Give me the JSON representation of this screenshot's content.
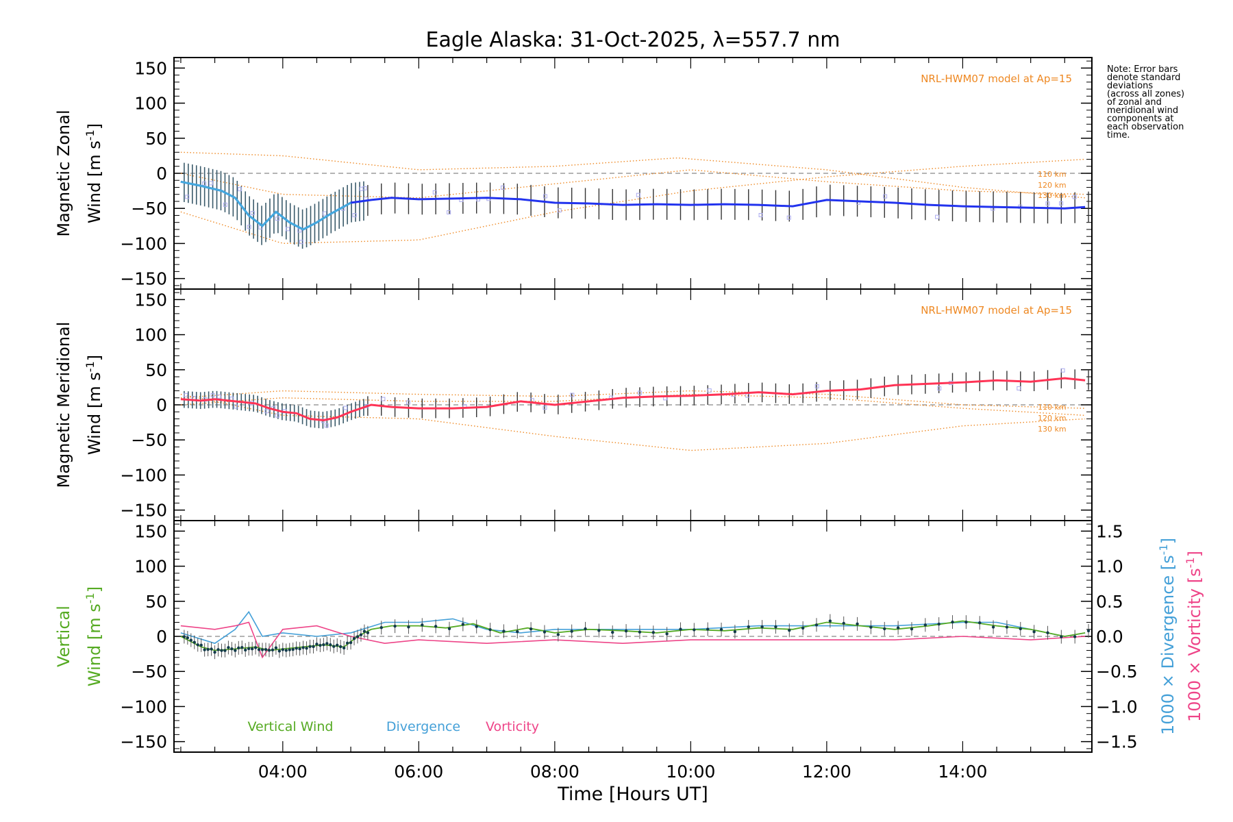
{
  "title": "Eagle Alaska: 31-Oct-2025, λ=557.7 nm",
  "note_lines": [
    "Note: Error bars",
    "denote standard",
    "deviations",
    "(across all zones)",
    "of zonal and",
    "meridional wind",
    "components at",
    "each observation",
    "time."
  ],
  "colors": {
    "zonal": "#2233ee",
    "zonal_light": "#44aadd",
    "meridional": "#ff3355",
    "model": "#ee8822",
    "vertical": "#55aa22",
    "divergence": "#44a0d8",
    "vorticity": "#ee4488",
    "scatter": "#aaaaee"
  },
  "chart_data": [
    {
      "type": "line",
      "panel": "zonal",
      "ylabel_line1": "Magnetic Zonal",
      "ylabel_line2": "Wind [m s",
      "ylabel_sup": "-1",
      "ylabel_end": "]",
      "ylim": [
        -165,
        165
      ],
      "yticks": [
        -150,
        -100,
        -50,
        0,
        50,
        100,
        150
      ],
      "model_label": "NRL-HWM07 model at Ap=15",
      "model_km_labels": [
        "110 km",
        "120 km",
        "130 km"
      ],
      "series": [
        {
          "name": "Zonal Wind",
          "x": [
            2.5,
            2.8,
            3.1,
            3.3,
            3.5,
            3.7,
            3.9,
            4.1,
            4.3,
            4.5,
            4.7,
            5.0,
            5.3,
            5.6,
            6.0,
            6.5,
            7.0,
            7.5,
            8.0,
            8.5,
            9.0,
            9.5,
            10.0,
            10.5,
            11.0,
            11.5,
            12.0,
            12.5,
            13.0,
            13.5,
            14.0,
            14.5,
            15.0,
            15.5,
            15.8
          ],
          "y": [
            -12,
            -18,
            -25,
            -35,
            -60,
            -75,
            -55,
            -70,
            -80,
            -70,
            -58,
            -42,
            -38,
            -35,
            -37,
            -36,
            -35,
            -37,
            -42,
            -43,
            -45,
            -44,
            -45,
            -44,
            -45,
            -47,
            -38,
            -40,
            -42,
            -45,
            -47,
            -48,
            -49,
            -50,
            -48
          ]
        },
        {
          "name": "110 km model",
          "x": [
            2.5,
            4.0,
            6.0,
            8.0,
            10.0,
            12.0,
            14.0,
            15.8
          ],
          "y": [
            -55,
            -100,
            -95,
            -55,
            -25,
            -5,
            10,
            20
          ]
        },
        {
          "name": "120 km model",
          "x": [
            2.5,
            4.0,
            6.0,
            8.0,
            10.0,
            12.0,
            14.0,
            15.8
          ],
          "y": [
            0,
            -30,
            -35,
            -15,
            5,
            -12,
            -25,
            -30
          ]
        },
        {
          "name": "130 km model",
          "x": [
            2.5,
            4.0,
            6.0,
            8.0,
            9.8,
            12.0,
            14.0,
            15.8
          ],
          "y": [
            30,
            25,
            5,
            10,
            22,
            5,
            -20,
            -35
          ]
        }
      ]
    },
    {
      "type": "line",
      "panel": "meridional",
      "ylabel_line1": "Magnetic Meridional",
      "ylabel_line2": "Wind [m s",
      "ylabel_sup": "-1",
      "ylabel_end": "]",
      "ylim": [
        -165,
        165
      ],
      "yticks": [
        -150,
        -100,
        -50,
        0,
        50,
        100,
        150
      ],
      "model_label": "NRL-HWM07 model at Ap=15",
      "model_km_labels": [
        "110 km",
        "120 km",
        "130 km"
      ],
      "series": [
        {
          "name": "Meridional Wind",
          "x": [
            2.5,
            2.8,
            3.0,
            3.3,
            3.6,
            3.8,
            4.0,
            4.2,
            4.4,
            4.6,
            4.8,
            5.0,
            5.3,
            5.6,
            6.0,
            6.5,
            7.0,
            7.5,
            8.0,
            8.5,
            9.0,
            9.5,
            10.0,
            10.5,
            11.0,
            11.5,
            12.0,
            12.5,
            13.0,
            13.5,
            14.0,
            14.5,
            15.0,
            15.5,
            15.8
          ],
          "y": [
            8,
            6,
            8,
            5,
            2,
            -5,
            -10,
            -12,
            -20,
            -22,
            -18,
            -10,
            0,
            -3,
            -5,
            -5,
            -3,
            5,
            0,
            5,
            10,
            12,
            13,
            15,
            18,
            15,
            20,
            22,
            28,
            30,
            32,
            35,
            33,
            38,
            35
          ]
        },
        {
          "name": "110 km model",
          "x": [
            2.5,
            4.0,
            6.0,
            8.0,
            10.0,
            12.0,
            14.0,
            15.8
          ],
          "y": [
            15,
            -15,
            -20,
            -45,
            -65,
            -55,
            -30,
            -20
          ]
        },
        {
          "name": "120 km model",
          "x": [
            2.5,
            4.0,
            6.0,
            8.0,
            10.0,
            12.0,
            14.0,
            15.8
          ],
          "y": [
            0,
            10,
            5,
            5,
            15,
            10,
            -5,
            -15
          ]
        },
        {
          "name": "130 km model",
          "x": [
            2.5,
            4.0,
            6.0,
            8.0,
            10.0,
            12.0,
            14.0,
            15.8
          ],
          "y": [
            10,
            20,
            15,
            12,
            20,
            15,
            0,
            -5
          ]
        }
      ]
    },
    {
      "type": "line",
      "panel": "vertical",
      "ylabel_line1": "Vertical",
      "ylabel_line2": "Wind [m s",
      "ylabel_sup": "-1",
      "ylabel_end": "]",
      "ylim": [
        -165,
        165
      ],
      "yticks": [
        -150,
        -100,
        -50,
        0,
        50,
        100,
        150
      ],
      "y2label_div": "1000 × Divergence [s",
      "y2label_vor": "1000 × Vorticity [s",
      "y2lim": [
        -1.65,
        1.65
      ],
      "y2ticks": [
        -1.5,
        -1.0,
        -0.5,
        0.0,
        0.5,
        1.0,
        1.5
      ],
      "y2tick_labels": [
        "−1.5",
        "−1.0",
        "−0.5",
        "0.0",
        "0.5",
        "1.0",
        "1.5"
      ],
      "legend": [
        "Vertical Wind",
        "Divergence",
        "Vorticity"
      ],
      "series": [
        {
          "name": "Vertical Wind",
          "x": [
            2.5,
            2.8,
            3.0,
            3.3,
            3.6,
            3.8,
            4.0,
            4.3,
            4.6,
            4.9,
            5.1,
            5.3,
            5.6,
            6.0,
            6.4,
            6.8,
            7.2,
            7.6,
            8.0,
            8.5,
            9.0,
            9.5,
            10.0,
            10.5,
            11.0,
            11.5,
            12.0,
            12.5,
            13.0,
            13.5,
            14.0,
            14.5,
            15.0,
            15.5,
            15.8
          ],
          "y": [
            0,
            -15,
            -20,
            -18,
            -15,
            -20,
            -18,
            -15,
            -12,
            -15,
            0,
            10,
            15,
            15,
            12,
            18,
            5,
            12,
            5,
            10,
            8,
            5,
            10,
            8,
            12,
            10,
            20,
            15,
            10,
            15,
            22,
            15,
            10,
            0,
            5
          ]
        },
        {
          "name": "Divergence",
          "x": [
            2.5,
            3.0,
            3.3,
            3.5,
            3.7,
            4.0,
            4.5,
            5.0,
            5.5,
            6.0,
            6.5,
            7.0,
            7.5,
            8.0,
            9.0,
            10.0,
            11.0,
            12.0,
            13.0,
            14.0,
            14.5,
            15.0,
            15.5,
            15.8
          ],
          "y": [
            0.05,
            -0.1,
            0.1,
            0.35,
            0.0,
            0.05,
            0.0,
            0.05,
            0.2,
            0.2,
            0.25,
            0.1,
            0.05,
            0.1,
            0.1,
            0.1,
            0.15,
            0.15,
            0.15,
            0.2,
            0.2,
            0.1,
            0.0,
            0.05
          ]
        },
        {
          "name": "Vorticity",
          "x": [
            2.5,
            3.0,
            3.3,
            3.5,
            3.7,
            4.0,
            4.5,
            5.0,
            5.5,
            6.0,
            7.0,
            8.0,
            9.0,
            10.0,
            11.0,
            12.0,
            13.0,
            14.0,
            15.0,
            15.8
          ],
          "y": [
            0.15,
            0.1,
            0.15,
            0.2,
            -0.3,
            0.1,
            0.15,
            0.0,
            -0.1,
            -0.05,
            -0.1,
            -0.05,
            -0.1,
            -0.05,
            -0.05,
            -0.05,
            -0.05,
            0.0,
            -0.05,
            0.0
          ]
        }
      ]
    }
  ],
  "x_axis": {
    "xlim": [
      2.4,
      15.9
    ],
    "ticks": [
      4,
      6,
      8,
      10,
      12,
      14
    ],
    "tick_labels": [
      "04:00",
      "06:00",
      "08:00",
      "10:00",
      "12:00",
      "14:00"
    ],
    "label": "Time [Hours UT]"
  }
}
